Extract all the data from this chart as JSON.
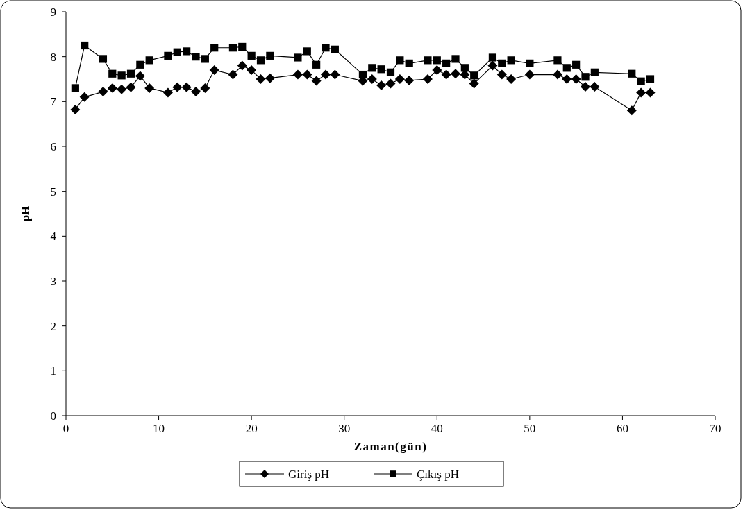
{
  "chart_data": {
    "type": "line",
    "xlabel": "Zaman(gün)",
    "ylabel": "pH",
    "xlim": [
      0,
      70
    ],
    "xticks": [
      0,
      10,
      20,
      30,
      40,
      50,
      60,
      70
    ],
    "ylim": [
      0,
      9
    ],
    "yticks": [
      0,
      1,
      2,
      3,
      4,
      5,
      6,
      7,
      8,
      9
    ],
    "grid": false,
    "legend": "bottom",
    "line_style": "solid",
    "series": [
      {
        "name": "Giriş pH",
        "color": "#000000",
        "marker": "diamond",
        "x": [
          1,
          2,
          4,
          5,
          6,
          7,
          8,
          9,
          11,
          12,
          13,
          14,
          15,
          16,
          18,
          19,
          20,
          21,
          22,
          25,
          26,
          27,
          28,
          29,
          32,
          33,
          34,
          35,
          36,
          37,
          39,
          40,
          41,
          42,
          43,
          44,
          46,
          47,
          48,
          50,
          53,
          54,
          55,
          56,
          57,
          61,
          62,
          63
        ],
        "values": [
          6.82,
          7.1,
          7.22,
          7.3,
          7.27,
          7.32,
          7.57,
          7.3,
          7.2,
          7.32,
          7.32,
          7.22,
          7.3,
          7.7,
          7.6,
          7.8,
          7.7,
          7.5,
          7.52,
          7.6,
          7.6,
          7.46,
          7.6,
          7.6,
          7.46,
          7.5,
          7.36,
          7.4,
          7.5,
          7.47,
          7.5,
          7.7,
          7.6,
          7.62,
          7.6,
          7.4,
          7.8,
          7.6,
          7.5,
          7.6,
          7.6,
          7.5,
          7.5,
          7.33,
          7.33,
          6.8,
          7.2,
          7.2
        ]
      },
      {
        "name": "Çıkış pH",
        "color": "#000000",
        "marker": "square",
        "x": [
          1,
          2,
          4,
          5,
          6,
          7,
          8,
          9,
          11,
          12,
          13,
          14,
          15,
          16,
          18,
          19,
          20,
          21,
          22,
          25,
          26,
          27,
          28,
          29,
          32,
          33,
          34,
          35,
          36,
          37,
          39,
          40,
          41,
          42,
          43,
          44,
          46,
          47,
          48,
          50,
          53,
          54,
          55,
          56,
          57,
          61,
          62,
          63
        ],
        "values": [
          7.3,
          8.25,
          7.95,
          7.62,
          7.58,
          7.62,
          7.82,
          7.92,
          8.02,
          8.1,
          8.12,
          8.0,
          7.95,
          8.2,
          8.2,
          8.22,
          8.02,
          7.92,
          8.02,
          7.98,
          8.12,
          7.82,
          8.2,
          8.16,
          7.6,
          7.75,
          7.72,
          7.65,
          7.92,
          7.85,
          7.92,
          7.92,
          7.85,
          7.95,
          7.75,
          7.58,
          7.98,
          7.85,
          7.92,
          7.85,
          7.92,
          7.75,
          7.82,
          7.55,
          7.65,
          7.62,
          7.45,
          7.5
        ]
      }
    ]
  }
}
